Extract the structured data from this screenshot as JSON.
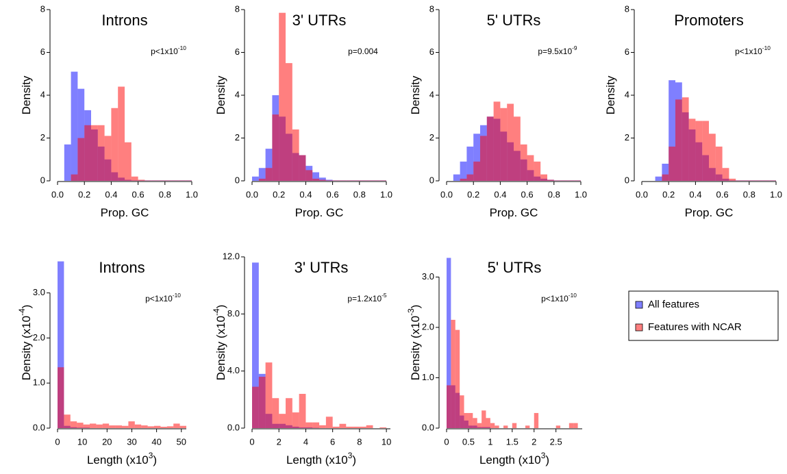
{
  "chart_data": [
    {
      "type": "histogram",
      "title": "Introns",
      "annotation": [
        "p<1x10",
        "-10"
      ],
      "xlabel": [
        "Prop. GC"
      ],
      "ylabel": [
        "Density"
      ],
      "bins": [
        0,
        0.05,
        0.1,
        0.15,
        0.2,
        0.25,
        0.3,
        0.35,
        0.4,
        0.45,
        0.5,
        0.55,
        0.6,
        0.65,
        0.7,
        0.75,
        0.8,
        0.85,
        0.9,
        0.95,
        1
      ],
      "series": [
        {
          "color": "#0000ff",
          "values": [
            0,
            1.7,
            5.1,
            4.3,
            3.3,
            2.4,
            1.6,
            1.0,
            0.4,
            0.15,
            0.05,
            0.02,
            0.02,
            0.02,
            0.02,
            0.02,
            0.02,
            0.02,
            0.02,
            0.02
          ]
        },
        {
          "color": "#ff0000",
          "values": [
            0,
            0,
            0.3,
            2.0,
            2.6,
            2.6,
            2.6,
            2.1,
            3.4,
            4.4,
            1.8,
            0.2,
            0.05,
            0.02,
            0.02,
            0.02,
            0.02,
            0.02,
            0.02,
            0.02
          ]
        }
      ],
      "opacity": 0.5,
      "xlim": [
        0,
        1
      ],
      "ylim": [
        0,
        8
      ],
      "xticks": [
        {
          "value": 0,
          "label": "0.0"
        },
        {
          "value": 0.2,
          "label": "0.2"
        },
        {
          "value": 0.4,
          "label": "0.4"
        },
        {
          "value": 0.6,
          "label": "0.6"
        },
        {
          "value": 0.8,
          "label": "0.8"
        },
        {
          "value": 1,
          "label": "1.0"
        }
      ],
      "yticks": [
        0,
        2,
        4,
        6,
        8
      ]
    },
    {
      "type": "histogram",
      "title": "3' UTRs",
      "annotation": [
        "p=0.004"
      ],
      "xlabel": [
        "Prop. GC"
      ],
      "ylabel": [
        "Density"
      ],
      "bins": [
        0,
        0.05,
        0.1,
        0.15,
        0.2,
        0.25,
        0.3,
        0.35,
        0.4,
        0.45,
        0.5,
        0.55,
        0.6,
        0.65,
        0.7,
        0.75,
        0.8,
        0.85,
        0.9,
        0.95,
        1
      ],
      "series": [
        {
          "color": "#0000ff",
          "values": [
            0.2,
            0.6,
            1.5,
            4.0,
            3.0,
            2.2,
            1.3,
            1.2,
            0.7,
            0.4,
            0.15,
            0.05,
            0.02,
            0.02,
            0.02,
            0.02,
            0.02,
            0.02,
            0.02,
            0.02
          ]
        },
        {
          "color": "#ff0000",
          "values": [
            0,
            0.1,
            0.6,
            3.1,
            7.85,
            5.5,
            2.4,
            1.2,
            0.5,
            0.1,
            0.05,
            0.02,
            0.02,
            0.02,
            0.02,
            0.02,
            0.02,
            0.02,
            0.02,
            0.02
          ]
        }
      ],
      "opacity": 0.5,
      "xlim": [
        0,
        1
      ],
      "ylim": [
        0,
        8
      ],
      "xticks": [
        {
          "value": 0,
          "label": "0.0"
        },
        {
          "value": 0.2,
          "label": "0.2"
        },
        {
          "value": 0.4,
          "label": "0.4"
        },
        {
          "value": 0.6,
          "label": "0.6"
        },
        {
          "value": 0.8,
          "label": "0.8"
        },
        {
          "value": 1,
          "label": "1.0"
        }
      ],
      "yticks": [
        0,
        2,
        4,
        6,
        8
      ]
    },
    {
      "type": "histogram",
      "title": "5' UTRs",
      "annotation": [
        "p=9.5x10",
        "-9"
      ],
      "xlabel": [
        "Prop. GC"
      ],
      "ylabel": [
        "Density"
      ],
      "bins": [
        0,
        0.05,
        0.1,
        0.15,
        0.2,
        0.25,
        0.3,
        0.35,
        0.4,
        0.45,
        0.5,
        0.55,
        0.6,
        0.65,
        0.7,
        0.75,
        0.8,
        0.85,
        0.9,
        0.95,
        1
      ],
      "series": [
        {
          "color": "#0000ff",
          "values": [
            0,
            0.3,
            0.9,
            1.6,
            2.2,
            2.6,
            3.0,
            2.9,
            2.3,
            1.8,
            1.4,
            1.0,
            0.5,
            0.2,
            0.1,
            0.05,
            0.02,
            0.02,
            0.02,
            0.02
          ]
        },
        {
          "color": "#ff0000",
          "values": [
            0,
            0,
            0.1,
            0.3,
            0.9,
            2.1,
            3.0,
            3.7,
            3.4,
            3.6,
            3.0,
            1.7,
            1.2,
            0.9,
            0.3,
            0.05,
            0.02,
            0.02,
            0.02,
            0.02
          ]
        }
      ],
      "opacity": 0.5,
      "xlim": [
        0,
        1
      ],
      "ylim": [
        0,
        8
      ],
      "xticks": [
        {
          "value": 0,
          "label": "0.0"
        },
        {
          "value": 0.2,
          "label": "0.2"
        },
        {
          "value": 0.4,
          "label": "0.4"
        },
        {
          "value": 0.6,
          "label": "0.6"
        },
        {
          "value": 0.8,
          "label": "0.8"
        },
        {
          "value": 1,
          "label": "1.0"
        }
      ],
      "yticks": [
        0,
        2,
        4,
        6,
        8
      ]
    },
    {
      "type": "histogram",
      "title": "Promoters",
      "annotation": [
        "p<1x10",
        "-10"
      ],
      "xlabel": [
        "Prop. GC"
      ],
      "ylabel": [
        "Density"
      ],
      "bins": [
        0,
        0.05,
        0.1,
        0.15,
        0.2,
        0.25,
        0.3,
        0.35,
        0.4,
        0.45,
        0.5,
        0.55,
        0.6,
        0.65,
        0.7,
        0.75,
        0.8,
        0.85,
        0.9,
        0.95,
        1
      ],
      "series": [
        {
          "color": "#0000ff",
          "values": [
            0,
            0,
            0.2,
            0.8,
            4.7,
            4.6,
            3.2,
            2.4,
            1.8,
            1.2,
            0.6,
            0.3,
            0.1,
            0.02,
            0.02,
            0.02,
            0.02,
            0.02,
            0.02,
            0.02
          ]
        },
        {
          "color": "#ff0000",
          "values": [
            0,
            0,
            0,
            0.3,
            1.6,
            3.8,
            3.9,
            2.9,
            2.8,
            2.8,
            2.2,
            1.6,
            0.6,
            0.1,
            0.02,
            0.02,
            0.02,
            0.02,
            0.02,
            0.02
          ]
        }
      ],
      "opacity": 0.5,
      "xlim": [
        0,
        1
      ],
      "ylim": [
        0,
        8
      ],
      "xticks": [
        {
          "value": 0,
          "label": "0.0"
        },
        {
          "value": 0.2,
          "label": "0.2"
        },
        {
          "value": 0.4,
          "label": "0.4"
        },
        {
          "value": 0.6,
          "label": "0.6"
        },
        {
          "value": 0.8,
          "label": "0.8"
        },
        {
          "value": 1,
          "label": "1.0"
        }
      ],
      "yticks": [
        0,
        2,
        4,
        6,
        8
      ]
    },
    {
      "type": "histogram",
      "title": "Introns",
      "annotation": [
        "p<1x10",
        "-10"
      ],
      "xlabel": [
        "Length (x10",
        "3",
        ")"
      ],
      "ylabel": [
        "Density (x10",
        "-4",
        ")"
      ],
      "bins": [
        0,
        2.6,
        5.2,
        7.8,
        10.4,
        13,
        15.6,
        18.2,
        20.8,
        23.4,
        26,
        28.6,
        31.2,
        33.8,
        36.4,
        39,
        41.6,
        44.2,
        46.8,
        49.4,
        52
      ],
      "series": [
        {
          "color": "#0000ff",
          "values": [
            3.7,
            0.05,
            0.02,
            0.01,
            0.01,
            0,
            0,
            0,
            0,
            0,
            0,
            0,
            0,
            0,
            0,
            0,
            0,
            0,
            0,
            0
          ]
        },
        {
          "color": "#ff0000",
          "values": [
            1.35,
            0.3,
            0.15,
            0.12,
            0.08,
            0.1,
            0.08,
            0.1,
            0.06,
            0.06,
            0.05,
            0.15,
            0.08,
            0.06,
            0.04,
            0.05,
            0.03,
            0.04,
            0.1,
            0.05
          ]
        }
      ],
      "opacity": 0.5,
      "xlim": [
        0,
        52
      ],
      "ylim": [
        0,
        3.8
      ],
      "xticks": [
        0,
        10,
        20,
        30,
        40,
        50
      ],
      "yticks": [
        {
          "value": 0,
          "label": "0.0"
        },
        {
          "value": 1,
          "label": "1.0"
        },
        {
          "value": 2,
          "label": "2.0"
        },
        {
          "value": 3,
          "label": "3.0"
        }
      ]
    },
    {
      "type": "histogram",
      "title": "3' UTRs",
      "annotation": [
        "p=1.2x10",
        "-5"
      ],
      "xlabel": [
        "Length (x10",
        "3",
        ")"
      ],
      "ylabel": [
        "Density (x10",
        "-4",
        ")"
      ],
      "bins": [
        0,
        0.5,
        1,
        1.5,
        2,
        2.5,
        3,
        3.5,
        4,
        4.5,
        5,
        5.5,
        6,
        6.5,
        7,
        7.5,
        8,
        8.5,
        9,
        9.5,
        10
      ],
      "series": [
        {
          "color": "#0000ff",
          "values": [
            11.6,
            3.8,
            1.0,
            0.3,
            0.3,
            0.2,
            0.1,
            0.05,
            0.05,
            0.02,
            0,
            0,
            0,
            0,
            0,
            0,
            0,
            0,
            0,
            0
          ]
        },
        {
          "color": "#ff0000",
          "values": [
            2.9,
            3.6,
            4.6,
            2.1,
            1.0,
            2.1,
            1.1,
            2.4,
            0.4,
            0.4,
            0.2,
            0.8,
            0.1,
            0.3,
            0.1,
            0.1,
            0.1,
            0.2,
            0,
            0.05
          ]
        }
      ],
      "opacity": 0.5,
      "xlim": [
        0,
        10.3
      ],
      "ylim": [
        0,
        12
      ],
      "xticks": [
        0,
        2,
        4,
        6,
        8,
        10
      ],
      "yticks": [
        {
          "value": 0,
          "label": "0.0"
        },
        {
          "value": 4,
          "label": "4.0"
        },
        {
          "value": 8,
          "label": "8.0"
        },
        {
          "value": 12,
          "label": "12.0"
        }
      ]
    },
    {
      "type": "histogram",
      "title": "5' UTRs",
      "annotation": [
        "p<1x10",
        "-10"
      ],
      "xlabel": [
        "Length (x10",
        "3",
        ")"
      ],
      "ylabel": [
        "Density (x10",
        "-3",
        ")"
      ],
      "bins": [
        0,
        0.1,
        0.2,
        0.3,
        0.4,
        0.5,
        0.6,
        0.7,
        0.8,
        0.9,
        1,
        1.1,
        1.2,
        1.3,
        1.4,
        1.5,
        1.6,
        1.7,
        1.8,
        1.9,
        2,
        2.1,
        2.2,
        2.3,
        2.4,
        2.5,
        2.6,
        2.7,
        2.8,
        2.9,
        3
      ],
      "series": [
        {
          "name": "All features",
          "color": "#0000ff",
          "values": [
            3.38,
            0.85,
            0.7,
            0.25,
            0.15,
            0.05,
            0.05,
            0.02,
            0.02,
            0.02,
            0,
            0,
            0,
            0,
            0,
            0,
            0,
            0,
            0,
            0,
            0,
            0,
            0,
            0,
            0,
            0,
            0,
            0,
            0,
            0
          ]
        },
        {
          "name": "Features with NCAR",
          "color": "#ff0000",
          "values": [
            0.85,
            2.15,
            1.95,
            0.65,
            0.3,
            0.3,
            0.2,
            0.1,
            0.35,
            0.2,
            0.1,
            0.05,
            0,
            0.05,
            0,
            0.1,
            0,
            0,
            0.05,
            0,
            0.3,
            0,
            0,
            0,
            0,
            0.05,
            0,
            0,
            0.1,
            0.1
          ]
        }
      ],
      "opacity": 0.5,
      "xlim": [
        0,
        3.1
      ],
      "ylim": [
        0,
        3.4
      ],
      "xticks": [
        0,
        0.5,
        1,
        1.5,
        2,
        2.5
      ],
      "yticks": [
        {
          "value": 0,
          "label": "0.0"
        },
        {
          "value": 1,
          "label": "1.0"
        },
        {
          "value": 2,
          "label": "2.0"
        },
        {
          "value": 3,
          "label": "3.0"
        }
      ]
    }
  ]
}
